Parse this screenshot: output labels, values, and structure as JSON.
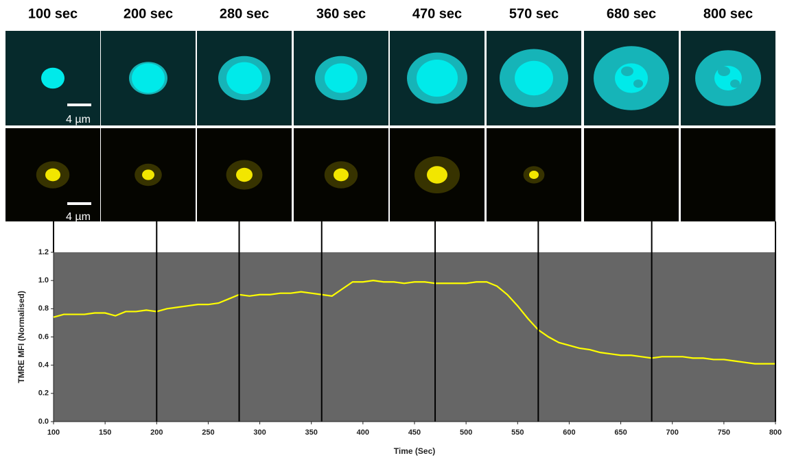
{
  "panel_titles": [
    "100 sec",
    "200 sec",
    "280 sec",
    "360 sec",
    "470 sec",
    "570 sec",
    "680 sec",
    "800 sec"
  ],
  "scale_bar_label": "4 µm",
  "chart_data": {
    "type": "line",
    "x_label": "Time (Sec)",
    "y_label": "TMRE MFI (Normalised)",
    "xlim": [
      100,
      800
    ],
    "xticks": [
      100,
      150,
      200,
      250,
      300,
      350,
      400,
      450,
      500,
      550,
      600,
      650,
      700,
      750,
      800
    ],
    "ylim": [
      0,
      1.2
    ],
    "yticks": [
      {
        "value": 0,
        "label": "0.0"
      },
      {
        "value": 0.2,
        "label": "0.2"
      },
      {
        "value": 0.4,
        "label": "0.4"
      },
      {
        "value": 0.6,
        "label": "0.6"
      },
      {
        "value": 0.8,
        "label": "0.8"
      },
      {
        "value": 1,
        "label": "1.0"
      },
      {
        "value": 1.2,
        "label": "1.2"
      }
    ],
    "plot_background": "#666666",
    "marker_times": [
      100,
      200,
      280,
      360,
      470,
      570,
      680,
      800
    ],
    "x": [
      100,
      110,
      120,
      130,
      140,
      150,
      160,
      170,
      180,
      190,
      200,
      210,
      220,
      230,
      240,
      250,
      260,
      270,
      280,
      290,
      300,
      310,
      320,
      330,
      340,
      350,
      360,
      370,
      380,
      390,
      400,
      410,
      420,
      430,
      440,
      450,
      460,
      470,
      480,
      490,
      500,
      510,
      520,
      530,
      540,
      550,
      560,
      570,
      580,
      590,
      600,
      610,
      620,
      630,
      640,
      650,
      660,
      670,
      680,
      690,
      700,
      710,
      720,
      730,
      740,
      750,
      760,
      770,
      780,
      790,
      800
    ],
    "series": [
      {
        "color": "#ffff00",
        "values": [
          0.74,
          0.76,
          0.76,
          0.76,
          0.77,
          0.77,
          0.75,
          0.78,
          0.78,
          0.79,
          0.78,
          0.8,
          0.81,
          0.82,
          0.83,
          0.83,
          0.84,
          0.87,
          0.9,
          0.89,
          0.9,
          0.9,
          0.91,
          0.91,
          0.92,
          0.91,
          0.9,
          0.89,
          0.94,
          0.99,
          0.99,
          1.0,
          0.99,
          0.99,
          0.98,
          0.99,
          0.99,
          0.98,
          0.98,
          0.98,
          0.98,
          0.99,
          0.99,
          0.96,
          0.9,
          0.82,
          0.73,
          0.65,
          0.6,
          0.56,
          0.54,
          0.52,
          0.51,
          0.49,
          0.48,
          0.47,
          0.47,
          0.46,
          0.45,
          0.46,
          0.46,
          0.46,
          0.45,
          0.45,
          0.44,
          0.44,
          0.43,
          0.42,
          0.41,
          0.41,
          0.41
        ]
      }
    ]
  }
}
